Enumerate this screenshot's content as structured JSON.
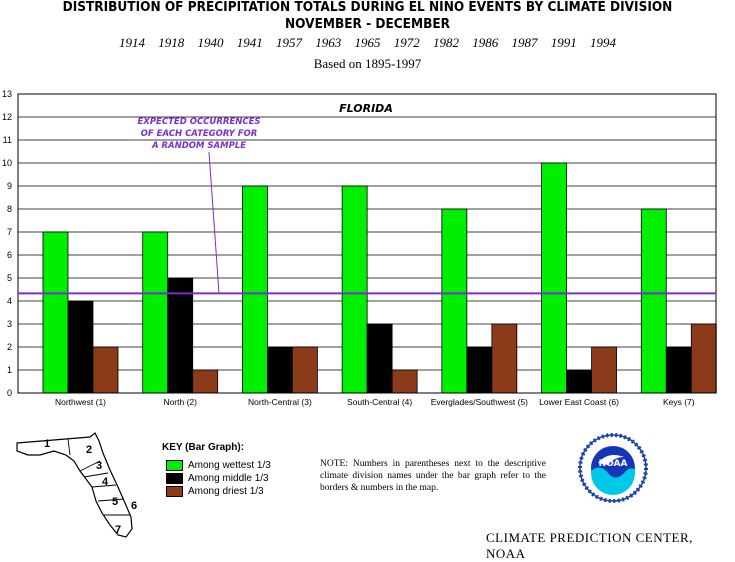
{
  "header": {
    "title_line1": "DISTRIBUTION OF PRECIPITATION TOTALS DURING EL NINO EVENTS BY CLIMATE DIVISION",
    "title_line2": "NOVEMBER - DECEMBER",
    "years": "1914 1918 1940 1941 1957 1963 1965 1972 1982 1986 1987 1991 1994",
    "based_on": "Based on 1895-1997"
  },
  "chart_data": {
    "type": "bar",
    "title": "FLORIDA",
    "categories": [
      "Northwest (1)",
      "North (2)",
      "North-Central (3)",
      "South-Central (4)",
      "Everglades/Southwest (5)",
      "Lower East Coast (6)",
      "Keys (7)"
    ],
    "series": [
      {
        "name": "Among wettest 1/3",
        "color": "#00ee00",
        "values": [
          7,
          7,
          9,
          9,
          8,
          10,
          8
        ]
      },
      {
        "name": "Among middle 1/3",
        "color": "#000000",
        "values": [
          4,
          5,
          2,
          3,
          2,
          1,
          2
        ]
      },
      {
        "name": "Among driest 1/3",
        "color": "#8b3a1a",
        "values": [
          2,
          1,
          2,
          1,
          3,
          2,
          3
        ]
      }
    ],
    "ylim": [
      0,
      13
    ],
    "yticks": [
      "0",
      "1",
      "2",
      "3",
      "4",
      "5",
      "6",
      "7",
      "8",
      "9",
      "10",
      "11",
      "12",
      "13"
    ],
    "grid": true,
    "reference_line": {
      "value": 4.33,
      "color": "#7b2fd0"
    },
    "annotation": [
      "EXPECTED OCCURRENCES",
      "OF EACH CATEGORY FOR",
      "A RANDOM SAMPLE"
    ]
  },
  "key": {
    "title": "KEY (Bar Graph):",
    "items": [
      {
        "label": "Among wettest 1/3",
        "color": "#00ee00"
      },
      {
        "label": "Among middle 1/3",
        "color": "#000000"
      },
      {
        "label": "Among driest 1/3",
        "color": "#8b3a1a"
      }
    ]
  },
  "note": "NOTE:  Numbers in parentheses next to the descriptive climate division names under the bar graph refer to the borders & numbers in the map.",
  "map": {
    "numbers": [
      "1",
      "2",
      "3",
      "4",
      "5",
      "6",
      "7"
    ]
  },
  "logo": {
    "text": "NOAA"
  },
  "footer": "CLIMATE PREDICTION CENTER, NOAA"
}
